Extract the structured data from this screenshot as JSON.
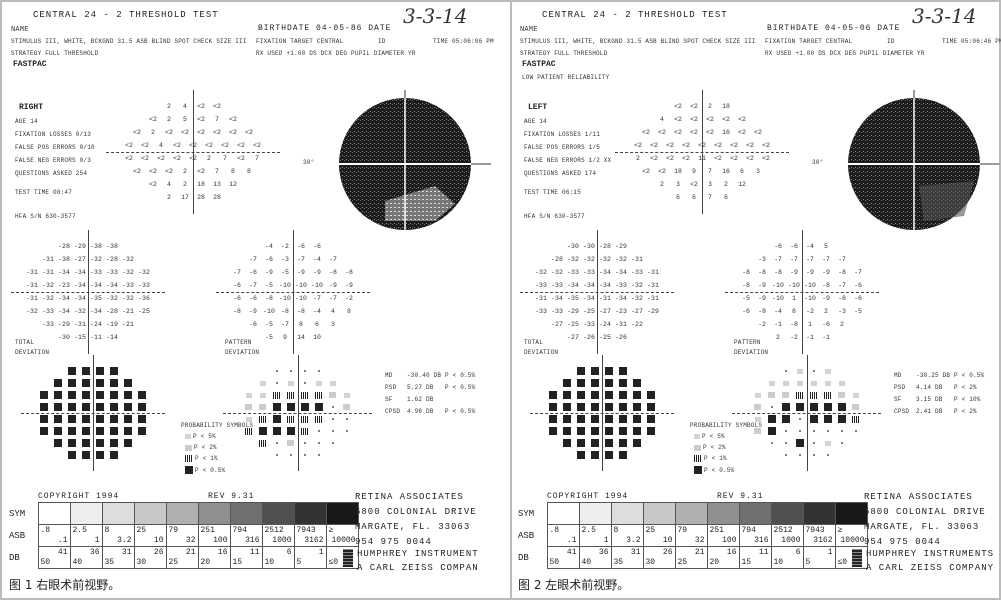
{
  "panels": [
    {
      "title": "CENTRAL 24 - 2 THRESHOLD TEST",
      "handwritten_date": "3-3-14",
      "name_label": "NAME",
      "birthdate": "BIRTHDATE  04-05-86 DATE",
      "stimulus": "STIMULUS  III, WHITE, BCKGND 31.5 ASB  BLIND SPOT CHECK SIZE  III",
      "strategy": "STRATEGY  FULL THRESHOLD",
      "fixation_target": "FIXATION TARGET   CENTRAL",
      "id": "ID",
      "time": "TIME  05:06:06 PM",
      "rx": "RX USED +1.00 DS      DCX      DEG      PUPIL DIAMETER      YR",
      "fastpac": "FASTPAC",
      "reliability": "",
      "eye": "RIGHT",
      "info": [
        "AGE        14",
        "FIXATION LOSSES   0/13",
        "FALSE POS ERRORS   0/10",
        "FALSE NEG ERRORS   0/3",
        "QUESTIONS ASKED   254"
      ],
      "test_time": "TEST TIME 08:47",
      "hfa": "HFA S/N   630-3577",
      "thirty": "30°",
      "threshold": [
        [
          "2",
          "4",
          "<2",
          "<2"
        ],
        [
          "<2",
          "2",
          "5",
          "<2",
          "7",
          "<2"
        ],
        [
          "<2",
          "2",
          "<2",
          "<2",
          "<2",
          "<2",
          "<2",
          "<2"
        ],
        [
          "<2",
          "<2",
          "4",
          "<2",
          "<2",
          "<2",
          "<2",
          "<2",
          "<2"
        ],
        [
          "<2",
          "<2",
          "<2",
          "<2",
          "<2",
          "2",
          "7",
          "<2",
          "7"
        ],
        [
          "<2",
          "<2",
          "<2",
          "2",
          "<2",
          "7",
          "8",
          "8"
        ],
        [
          "<2",
          "4",
          "2",
          "18",
          "13",
          "12"
        ],
        [
          "2",
          "17",
          "28",
          "28"
        ]
      ],
      "total_deviation_label": "TOTAL\nDEVIATION",
      "pattern_deviation_label": "PATTERN\nDEVIATION",
      "total_deviation": [
        [
          "-28",
          "-29",
          "-38",
          "-38"
        ],
        [
          "-31",
          "-38",
          "-27",
          "-32",
          "-28",
          "-32"
        ],
        [
          "-31",
          "-31",
          "-34",
          "-34",
          "-33",
          "-33",
          "-32",
          "-32"
        ],
        [
          "-31",
          "-32",
          "-23",
          "-34",
          "-34",
          "-34",
          "-33",
          "-33"
        ],
        [
          "-31",
          "-32",
          "-34",
          "-34",
          "-35",
          "-32",
          "-32",
          "-36"
        ],
        [
          "-32",
          "-33",
          "-34",
          "-32",
          "-34",
          "-28",
          "-21",
          "-25"
        ],
        [
          "-33",
          "-29",
          "-31",
          "-24",
          "-19",
          "-21"
        ],
        [
          "-30",
          "-15",
          "-11",
          "-14"
        ]
      ],
      "pattern_deviation": [
        [
          "-4",
          "-2",
          "-6",
          "-6"
        ],
        [
          "-7",
          "-6",
          "-3",
          "-7",
          "-4",
          "-7"
        ],
        [
          "-7",
          "-6",
          "-9",
          "-5",
          "-9",
          "-9",
          "-8",
          "-8"
        ],
        [
          "-6",
          "-7",
          "-5",
          "-10",
          "-10",
          "-10",
          "-9",
          "-9"
        ],
        [
          "-6",
          "-6",
          "-8",
          "-10",
          "-10",
          "-7",
          "-7",
          "-2"
        ],
        [
          "-8",
          "-9",
          "-10",
          "-8",
          "-8",
          "-4",
          "4",
          "8"
        ],
        [
          "-6",
          "-5",
          "-7",
          "8",
          "6",
          "3"
        ],
        [
          "-5",
          "9",
          "14",
          "10"
        ]
      ],
      "total_prob": [
        "eeee",
        "eeeeee",
        "eeeeeeee",
        "eeeeeeee",
        "eeeeeeee",
        "eeeeeeee",
        "eeeeee",
        "eeee"
      ],
      "pattern_prob": [
        "dddd",
        "adadaa",
        "aaccccba",
        "bbeeeedb",
        "aceccc dd",
        "ceeecddd",
        "cdbddd",
        "dddd"
      ],
      "prob_symbols_title": "PROBABILITY SYMBOLS",
      "prob_symbols": [
        {
          "code": "a",
          "label": "P <  5%"
        },
        {
          "code": "b",
          "label": "P <  2%"
        },
        {
          "code": "c",
          "label": "P <  1%"
        },
        {
          "code": "e",
          "label": "P < 0.5%"
        }
      ],
      "indices": [
        {
          "k": "MD",
          "v": "-30.40 DB",
          "p": "P < 0.5%"
        },
        {
          "k": "PSD",
          "v": "5.27 DB",
          "p": "P < 0.5%"
        },
        {
          "k": "SF",
          "v": "1.62 DB",
          "p": ""
        },
        {
          "k": "CPSD",
          "v": "4.98 DB",
          "p": "P < 0.5%"
        }
      ],
      "copyright": "COPYRIGHT 1994",
      "rev": "REV 9.31",
      "address": [
        "RETINA ASSOCIATES",
        "5800 COLONIAL DRIVE",
        "MARGATE, FL. 33063",
        "954 975 0044"
      ],
      "maker": [
        "HUMPHREY INSTRUMENT",
        "A CARL ZEISS COMPAN"
      ],
      "caption": "图 1 右眼术前视野。"
    },
    {
      "title": "CENTRAL 24 - 2 THRESHOLD TEST",
      "handwritten_date": "3-3-14",
      "name_label": "NAME",
      "birthdate": "BIRTHDATE  04-05-06 DATE",
      "stimulus": "STIMULUS  III, WHITE, BCKGND 31.5 ASB  BLIND SPOT CHECK SIZE  III",
      "strategy": "STRATEGY  FULL THRESHOLD",
      "fixation_target": "FIXATION TARGET   CENTRAL",
      "id": "ID",
      "time": "TIME  05:06:46 PM",
      "rx": "RX USED +1.00 DS      DCX      DEG      PUPIL DIAMETER      YR",
      "fastpac": "FASTPAC",
      "reliability": "LOW PATIENT RELIABILITY",
      "eye": "LEFT",
      "info": [
        "AGE        14",
        "FIXATION LOSSES   1/11",
        "FALSE POS ERRORS   1/5",
        "FALSE NEG ERRORS   1/2 XX",
        "QUESTIONS ASKED   174"
      ],
      "test_time": "TEST TIME 06:15",
      "hfa": "HFA S/N   630-3577",
      "thirty": "30°",
      "threshold": [
        [
          "<2",
          "<2",
          "2",
          "18"
        ],
        [
          "4",
          "<2",
          "<2",
          "<2",
          "<2",
          "<2"
        ],
        [
          "<2",
          "<2",
          "<2",
          "<2",
          "<2",
          "16",
          "<2",
          "<2"
        ],
        [
          "<2",
          "<2",
          "<2",
          "<2",
          "<2",
          "<2",
          "<2",
          "<2",
          "<2"
        ],
        [
          "2",
          "<2",
          "<2",
          "<2",
          "11",
          "<2",
          "<2",
          "<2",
          "<2"
        ],
        [
          "<2",
          "<2",
          "18",
          "9",
          "7",
          "16",
          "6",
          "3"
        ],
        [
          "2",
          "3",
          "<2",
          "3",
          "2",
          "12"
        ],
        [
          "6",
          "6",
          "7",
          "6"
        ]
      ],
      "total_deviation_label": "TOTAL\nDEVIATION",
      "pattern_deviation_label": "PATTERN\nDEVIATION",
      "total_deviation": [
        [
          "-30",
          "-30",
          "-28",
          "-29"
        ],
        [
          "-28",
          "-32",
          "-32",
          "-32",
          "-32",
          "-31"
        ],
        [
          "-32",
          "-32",
          "-33",
          "-33",
          "-34",
          "-34",
          "-33",
          "-31"
        ],
        [
          "-33",
          "-33",
          "-34",
          "-34",
          "-34",
          "-33",
          "-32",
          "-31"
        ],
        [
          "-31",
          "-34",
          "-35",
          "-34",
          "-31",
          "-34",
          "-32",
          "-31"
        ],
        [
          "-33",
          "-33",
          "-29",
          "-25",
          "-27",
          "-23",
          "-27",
          "-29"
        ],
        [
          "-27",
          "-25",
          "-33",
          "-24",
          "-31",
          "-22"
        ],
        [
          "-27",
          "-26",
          "-25",
          "-26"
        ]
      ],
      "pattern_deviation": [
        [
          "-6",
          "-6",
          "-4",
          "5"
        ],
        [
          "-3",
          "-7",
          "-7",
          "-7",
          "-7",
          "-7"
        ],
        [
          "-8",
          "-8",
          "-8",
          "-9",
          "-9",
          "-9",
          "-8",
          "-7"
        ],
        [
          "-8",
          "-9",
          "-10",
          "-10",
          "-10",
          "-8",
          "-7",
          "-6"
        ],
        [
          "-5",
          "-9",
          "-10",
          "1",
          "-10",
          "-9",
          "-8",
          "-6"
        ],
        [
          "-6",
          "-8",
          "-4",
          "8",
          "-2",
          "2",
          "-3",
          "-5"
        ],
        [
          "-2",
          "-1",
          "-8",
          "1",
          "-6",
          "2"
        ],
        [
          "2",
          "-2",
          "-1",
          "-1"
        ]
      ],
      "total_prob": [
        "eeee",
        "eeeeee",
        "eeeeeeee",
        "eeeeeeee",
        "eeeeeeee",
        "eeeeeeee",
        "eeeeee",
        "eeee"
      ],
      "pattern_prob": [
        "dada",
        "aaaaaa",
        "abbcccba",
        "bdeeeeeb",
        "aeedeeec",
        "bedddddd",
        "ddedad",
        "dddd"
      ],
      "prob_symbols_title": "PROBABILITY SYMBOLS",
      "prob_symbols": [
        {
          "code": "a",
          "label": "P <  5%"
        },
        {
          "code": "b",
          "label": "P <  2%"
        },
        {
          "code": "c",
          "label": "P <  1%"
        },
        {
          "code": "e",
          "label": "P < 0.5%"
        }
      ],
      "indices": [
        {
          "k": "MD",
          "v": "-30.25 DB",
          "p": "P < 0.5%"
        },
        {
          "k": "PSD",
          "v": "4.14 DB",
          "p": "P <  2%"
        },
        {
          "k": "SF",
          "v": "3.15 DB",
          "p": "P < 10%"
        },
        {
          "k": "CPSD",
          "v": "2.41 DB",
          "p": "P <  2%"
        }
      ],
      "copyright": "COPYRIGHT 1994",
      "rev": "REV 9.31",
      "address": [
        "RETINA ASSOCIATES",
        "5800 COLONIAL DRIVE",
        "MARGATE, FL. 33063",
        "954 975 0044"
      ],
      "maker": [
        "HUMPHREY INSTRUMENTS",
        "A CARL ZEISS COMPANY"
      ],
      "caption": "图 2 左眼术前视野。"
    }
  ],
  "legend_table": {
    "row_labels": [
      "SYM",
      "ASB",
      "DB"
    ],
    "asb": [
      [
        ".8",
        ".1"
      ],
      [
        "2.5",
        "1"
      ],
      [
        "8",
        "3.2"
      ],
      [
        "25",
        "10"
      ],
      [
        "79",
        "32"
      ],
      [
        "251",
        "100"
      ],
      [
        "794",
        "316"
      ],
      [
        "2512",
        "1000"
      ],
      [
        "7943",
        "3162"
      ],
      [
        "≥",
        "10000"
      ]
    ],
    "db": [
      [
        "41",
        "50"
      ],
      [
        "36",
        "40"
      ],
      [
        "31",
        "35"
      ],
      [
        "26",
        "30"
      ],
      [
        "21",
        "25"
      ],
      [
        "16",
        "20"
      ],
      [
        "11",
        "15"
      ],
      [
        "6",
        "10"
      ],
      [
        "1",
        "5"
      ],
      [
        "",
        "≤0"
      ]
    ],
    "sym_shades": [
      "#ffffff",
      "#eeeeee",
      "#dddddd",
      "#c8c8c8",
      "#b0b0b0",
      "#909090",
      "#707070",
      "#505050",
      "#333333",
      "#181818"
    ]
  }
}
